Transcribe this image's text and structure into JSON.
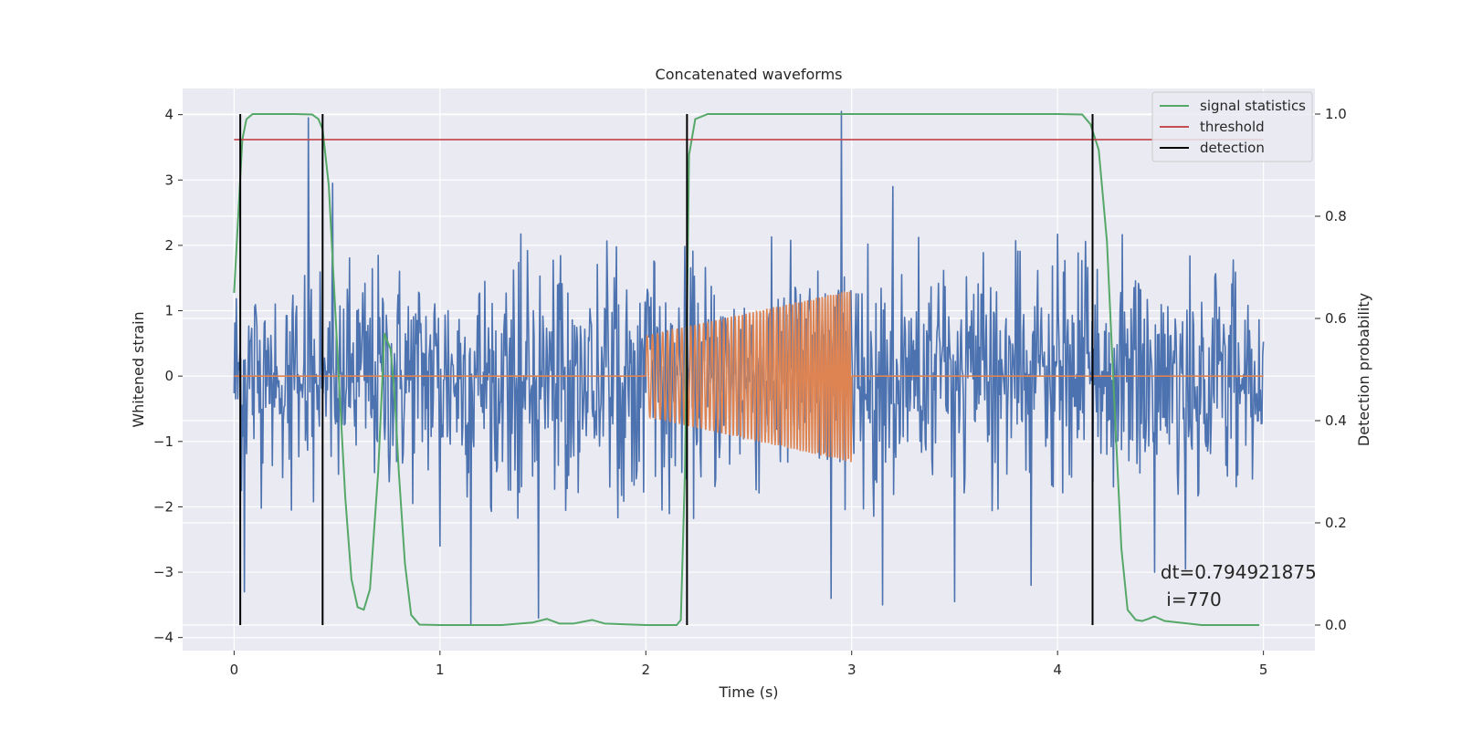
{
  "chart_data": {
    "type": "line",
    "title": "Concatenated waveforms",
    "xlabel": "Time (s)",
    "ylabel": "Whitened strain",
    "y2label": "Detection probability",
    "xlim": [
      -0.25,
      5.25
    ],
    "ylim": [
      -4.2,
      4.4
    ],
    "y2lim": [
      -0.05,
      1.05
    ],
    "x_ticks": [
      0,
      1,
      2,
      3,
      4,
      5
    ],
    "x_tick_labels": [
      "0",
      "1",
      "2",
      "3",
      "4",
      "5"
    ],
    "y_ticks": [
      -4,
      -3,
      -2,
      -1,
      0,
      1,
      2,
      3,
      4
    ],
    "y_tick_labels": [
      "−4",
      "−3",
      "−2",
      "−1",
      "0",
      "1",
      "2",
      "3",
      "4"
    ],
    "y2_ticks": [
      0,
      0.2,
      0.4,
      0.6,
      0.8,
      1.0
    ],
    "y2_tick_labels": [
      "0.0",
      "0.2",
      "0.4",
      "0.6",
      "0.8",
      "1.0"
    ],
    "grid": true,
    "legend_position": "top-right",
    "legend": [
      {
        "label": "signal statistics",
        "color": "#55a868",
        "kind": "line"
      },
      {
        "label": "threshold",
        "color": "#c44e52",
        "kind": "line"
      },
      {
        "label": "detection",
        "color": "#000000",
        "kind": "line"
      }
    ],
    "series": [
      {
        "name": "",
        "axis": "left",
        "color": "#4c72b0",
        "kind": "noise",
        "x_range": [
          0,
          5
        ],
        "envelope": 2.2,
        "peaks": [
          [
            0.36,
            3.95
          ],
          [
            2.95,
            4.05
          ],
          [
            0.48,
            2.95
          ],
          [
            3.2,
            2.9
          ],
          [
            0.05,
            -3.3
          ],
          [
            1.15,
            -3.8
          ],
          [
            1.48,
            -3.7
          ],
          [
            2.9,
            -3.4
          ],
          [
            3.15,
            -3.5
          ],
          [
            3.5,
            -3.45
          ],
          [
            4.47,
            -3.0
          ],
          [
            3.87,
            -3.2
          ],
          [
            4.62,
            -2.95
          ],
          [
            1.0,
            -2.6
          ]
        ]
      },
      {
        "name": "",
        "axis": "left",
        "color": "#dd8452",
        "kind": "chirp",
        "x_range": [
          0,
          5
        ],
        "chirp_range": [
          2.0,
          3.0
        ],
        "amplitude_start": 0.62,
        "amplitude_end": 1.32
      },
      {
        "name": "signal statistics",
        "axis": "right",
        "color": "#55a868",
        "kind": "line",
        "x": [
          0.0,
          0.02,
          0.04,
          0.06,
          0.09,
          0.15,
          0.3,
          0.38,
          0.41,
          0.43,
          0.46,
          0.5,
          0.54,
          0.57,
          0.6,
          0.63,
          0.66,
          0.7,
          0.73,
          0.76,
          0.78,
          0.8,
          0.83,
          0.86,
          0.9,
          1.0,
          1.3,
          1.45,
          1.52,
          1.58,
          1.65,
          1.74,
          1.8,
          2.0,
          2.15,
          2.17,
          2.19,
          2.21,
          2.24,
          2.3,
          2.6,
          3.0,
          3.5,
          4.0,
          4.12,
          4.16,
          4.2,
          4.24,
          4.28,
          4.31,
          4.34,
          4.38,
          4.41,
          4.44,
          4.47,
          4.52,
          4.7,
          4.98
        ],
        "y": [
          0.65,
          0.8,
          0.95,
          0.99,
          1.0,
          1.0,
          1.0,
          0.999,
          0.99,
          0.97,
          0.86,
          0.55,
          0.25,
          0.09,
          0.035,
          0.03,
          0.07,
          0.3,
          0.57,
          0.54,
          0.45,
          0.3,
          0.12,
          0.02,
          0.001,
          0.0,
          0.0,
          0.005,
          0.012,
          0.003,
          0.003,
          0.01,
          0.003,
          0.0,
          0.0,
          0.01,
          0.3,
          0.92,
          0.99,
          1.0,
          1.0,
          1.0,
          1.0,
          1.0,
          0.999,
          0.98,
          0.93,
          0.75,
          0.4,
          0.15,
          0.03,
          0.01,
          0.008,
          0.012,
          0.017,
          0.008,
          0.0,
          0.0
        ]
      },
      {
        "name": "threshold",
        "axis": "right",
        "color": "#c44e52",
        "kind": "hline",
        "x_range": [
          0,
          5
        ],
        "y": 0.95
      },
      {
        "name": "detection",
        "axis": "right",
        "color": "#000000",
        "kind": "vlines",
        "x": [
          0.03,
          0.43,
          2.2,
          4.17
        ],
        "y_range": [
          0.0,
          1.0
        ]
      }
    ],
    "annotation": {
      "line1": "dt=0.794921875",
      "line2": " i=770",
      "x": 4.5,
      "y": -3.0
    },
    "colors": {
      "background": "#eaeaf2",
      "grid": "#ffffff",
      "text": "#262626"
    }
  }
}
